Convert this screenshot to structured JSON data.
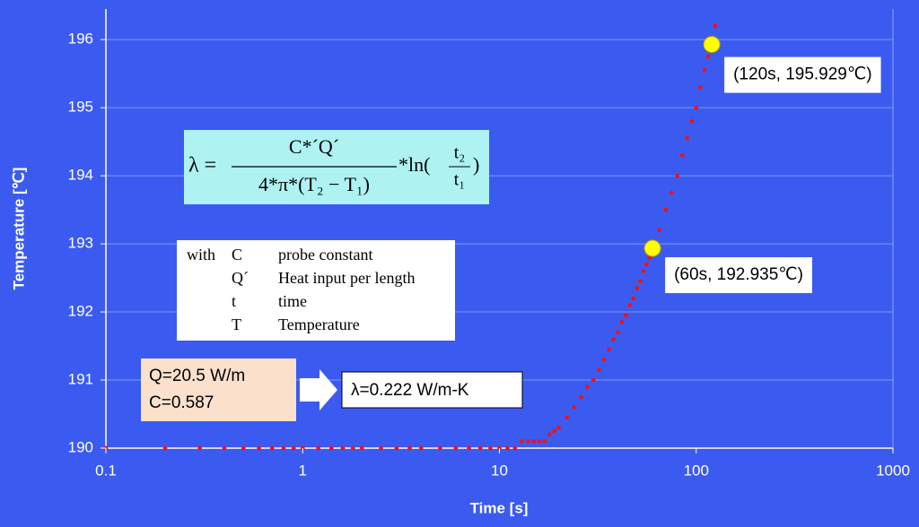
{
  "chart_data": {
    "type": "scatter",
    "x_label": "Time  [s]",
    "y_label": "Temperature [℃]",
    "x_scale": "log",
    "xlim": [
      0.1,
      1000
    ],
    "xticks": [
      0.1,
      1,
      10,
      100,
      1000
    ],
    "ylim": [
      190,
      196.45
    ],
    "yticks": [
      190,
      191,
      192,
      193,
      194,
      195,
      196
    ],
    "grid": true,
    "color": "#e8141e",
    "x": [
      0.1,
      0.2,
      0.3,
      0.4,
      0.5,
      0.6,
      0.7,
      0.8,
      0.9,
      1,
      1.2,
      1.4,
      1.6,
      1.8,
      2,
      2.5,
      3,
      3.5,
      4,
      5,
      6,
      7,
      8,
      9,
      10,
      11,
      12,
      13,
      14,
      15,
      16,
      17,
      18,
      19,
      20,
      22,
      24,
      26,
      28,
      30,
      32,
      34,
      36,
      38,
      40,
      42,
      44,
      46,
      48,
      50,
      52,
      54,
      56,
      58,
      60,
      65,
      70,
      75,
      80,
      85,
      90,
      95,
      100,
      105,
      110,
      115,
      120,
      125
    ],
    "values": [
      190,
      190,
      190,
      190,
      190,
      190,
      190,
      190,
      190,
      190,
      190,
      190,
      190,
      190,
      190,
      190,
      190,
      190,
      190,
      190,
      190,
      190,
      190,
      190,
      190,
      190,
      190,
      190.1,
      190.1,
      190.1,
      190.1,
      190.1,
      190.2,
      190.25,
      190.3,
      190.45,
      190.6,
      190.75,
      190.9,
      191,
      191.15,
      191.3,
      191.45,
      191.6,
      191.7,
      191.85,
      191.95,
      192.1,
      192.2,
      192.35,
      192.45,
      192.6,
      192.7,
      192.8,
      192.935,
      193.2,
      193.5,
      193.75,
      194,
      194.3,
      194.55,
      194.8,
      195,
      195.3,
      195.55,
      195.75,
      195.929,
      196.2
    ],
    "highlights": [
      {
        "x": 60,
        "y": 192.935,
        "label": "(60s, 192.935℃)",
        "color": "#ffff00"
      },
      {
        "x": 120,
        "y": 195.929,
        "label": "(120s, 195.929℃)",
        "color": "#ffff00"
      }
    ],
    "formula": {
      "lhs": "λ =",
      "numerator": "C*´Q´",
      "denominator": "4*π*(T₂ − T₁)",
      "log_prefix": "*ln(",
      "log_num": "t₂",
      "log_den": "t₁",
      "log_suffix": ")"
    },
    "legend_lead": "with",
    "symbols": [
      {
        "symbol": "C",
        "meaning": "probe constant"
      },
      {
        "symbol": "Q´",
        "meaning": "Heat input per length"
      },
      {
        "symbol": "t",
        "meaning": "time"
      },
      {
        "symbol": "T",
        "meaning": "Temperature"
      }
    ],
    "inputs": [
      "Q=20.5 W/m",
      "C=0.587"
    ],
    "result": "λ=0.222 W/m-K"
  }
}
